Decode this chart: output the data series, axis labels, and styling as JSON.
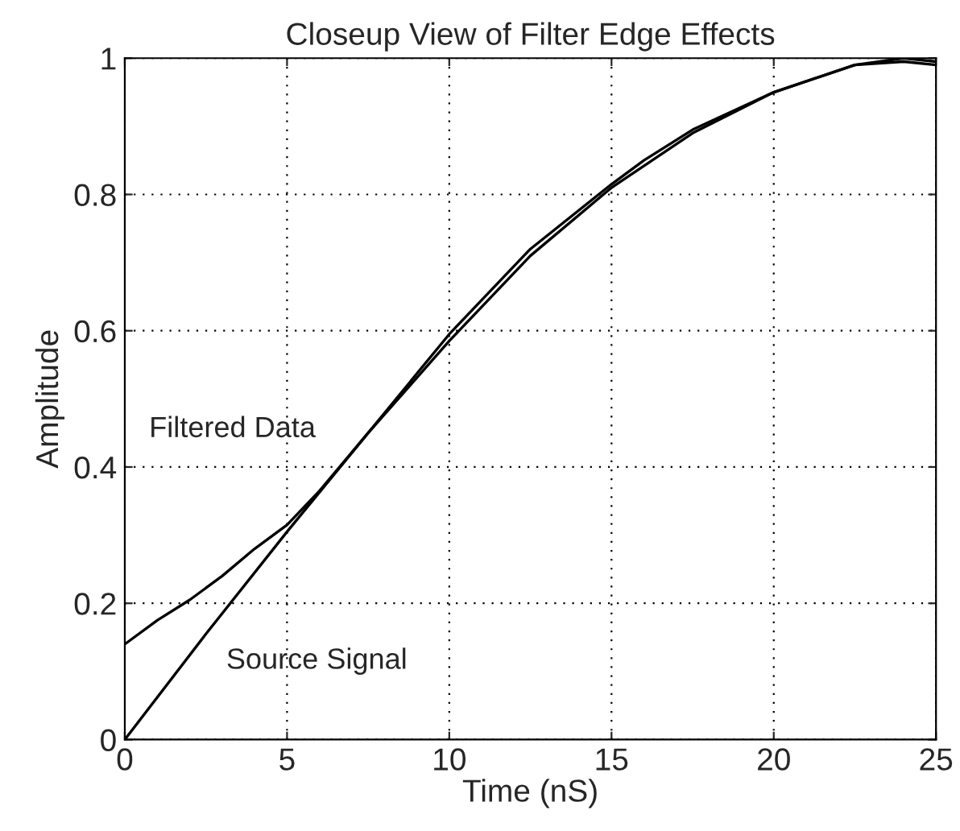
{
  "chart_data": {
    "type": "line",
    "title": "Closeup View of Filter Edge Effects",
    "xlabel": "Time (nS)",
    "ylabel": "Amplitude",
    "series": [
      {
        "color": "#000000",
        "x": [
          0,
          1,
          2,
          3,
          4,
          5,
          6,
          7.5,
          10,
          12.5,
          15,
          16,
          17.5,
          20,
          22.5,
          24,
          25
        ],
        "values": [
          0.14,
          0.175,
          0.205,
          0.24,
          0.28,
          0.315,
          0.365,
          0.45,
          0.595,
          0.72,
          0.815,
          0.85,
          0.895,
          0.95,
          0.99,
          0.995,
          0.99
        ]
      },
      {
        "color": "#000000",
        "x": [
          0,
          2.5,
          5,
          7.5,
          10,
          12.5,
          15,
          17.5,
          20,
          22.5,
          24,
          25
        ],
        "values": [
          0,
          0.155,
          0.305,
          0.45,
          0.585,
          0.71,
          0.81,
          0.89,
          0.95,
          0.99,
          1.0,
          0.995
        ]
      }
    ],
    "annotations": [
      "Filtered Data",
      "Source Signal"
    ],
    "xlim": [
      0,
      25
    ],
    "ylim": [
      0,
      1
    ],
    "xticks": [
      0,
      5,
      10,
      15,
      20,
      25
    ],
    "yticks": [
      0,
      0.2,
      0.4,
      0.6,
      0.8,
      1
    ],
    "grid": true,
    "line_style": "solid",
    "marker": "none"
  }
}
